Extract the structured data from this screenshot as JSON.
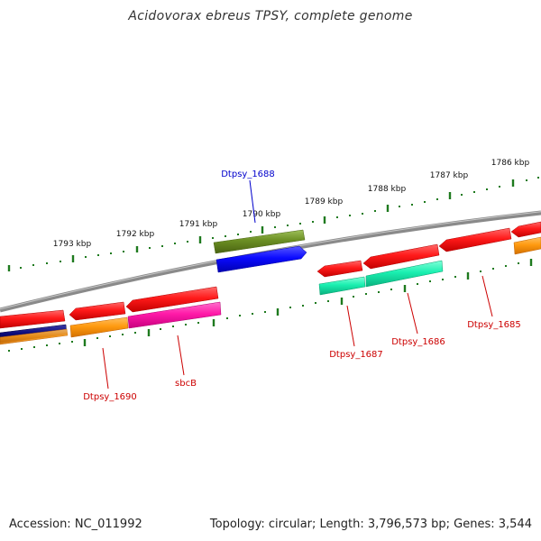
{
  "title": "Acidovorax ebreus TPSY, complete genome",
  "footer": {
    "accession": "Accession: NC_011992",
    "summary": "Topology: circular; Length: 3,796,573 bp; Genes: 3,544"
  },
  "ruler_labels": [
    "1786 kbp",
    "1787 kbp",
    "1788 kbp",
    "1789 kbp",
    "1790 kbp",
    "1791 kbp",
    "1792 kbp",
    "1793 kbp"
  ],
  "gene_labels": [
    "Dtpsy_1688",
    "Dtpsy_1687",
    "Dtpsy_1686",
    "Dtpsy_1685",
    "Dtpsy_1690",
    "sbcB"
  ],
  "colors": {
    "backbone": "#8a8a8a",
    "ruler_ticks": "#1e7a1e",
    "gene_red": "#ff1a1a",
    "gene_orange": "#ff9a10",
    "gene_navy": "#0a0a78",
    "gene_magenta": "#ff1aa8",
    "gene_olive": "#6b8e23",
    "gene_blue": "#0a0aff",
    "gene_teal": "#1aefb0",
    "label_red": "#cc0000",
    "label_blue": "#0000cc"
  }
}
